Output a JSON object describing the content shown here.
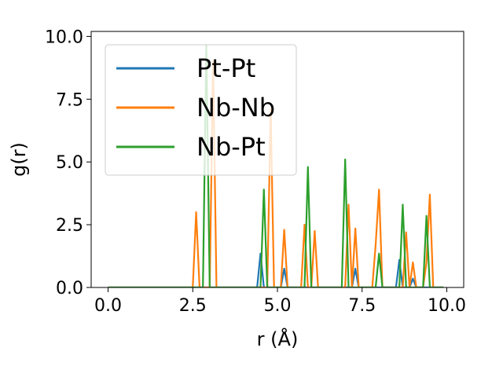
{
  "chart_data": {
    "type": "line",
    "title": "",
    "xlabel": "r (Å)",
    "ylabel": "g(r)",
    "xlim": [
      -0.5,
      10.5
    ],
    "ylim": [
      0.0,
      10.2
    ],
    "x_ticks": [
      "0.0",
      "2.5",
      "5.0",
      "7.5",
      "10.0"
    ],
    "y_ticks": [
      "0.0",
      "2.5",
      "5.0",
      "7.5",
      "10.0"
    ],
    "legend_position": "upper-left",
    "grid": false,
    "series": [
      {
        "name": "Pt-Pt",
        "color": "#1f77b4",
        "points": [
          [
            0.0,
            0.0
          ],
          [
            4.4,
            0.0
          ],
          [
            4.5,
            1.35
          ],
          [
            4.6,
            0.0
          ],
          [
            5.1,
            0.0
          ],
          [
            5.2,
            0.75
          ],
          [
            5.3,
            0.0
          ],
          [
            7.2,
            0.0
          ],
          [
            7.3,
            0.75
          ],
          [
            7.4,
            0.0
          ],
          [
            8.5,
            0.0
          ],
          [
            8.6,
            1.1
          ],
          [
            8.7,
            0.0
          ],
          [
            8.9,
            0.0
          ],
          [
            9.0,
            0.35
          ],
          [
            9.1,
            0.0
          ],
          [
            9.9,
            0.0
          ]
        ]
      },
      {
        "name": "Nb-Nb",
        "color": "#ff7f0e",
        "points": [
          [
            0.0,
            0.0
          ],
          [
            2.5,
            0.0
          ],
          [
            2.6,
            3.0
          ],
          [
            2.7,
            0.0
          ],
          [
            3.0,
            0.0
          ],
          [
            3.1,
            9.0
          ],
          [
            3.2,
            0.0
          ],
          [
            4.7,
            0.0
          ],
          [
            4.8,
            7.1
          ],
          [
            4.9,
            0.0
          ],
          [
            5.1,
            0.0
          ],
          [
            5.2,
            2.3
          ],
          [
            5.3,
            0.0
          ],
          [
            5.7,
            0.0
          ],
          [
            5.8,
            2.5
          ],
          [
            5.9,
            0.0
          ],
          [
            6.0,
            0.0
          ],
          [
            6.1,
            2.25
          ],
          [
            6.2,
            0.0
          ],
          [
            7.0,
            0.0
          ],
          [
            7.1,
            3.3
          ],
          [
            7.2,
            0.0
          ],
          [
            7.3,
            2.35
          ],
          [
            7.4,
            0.0
          ],
          [
            7.8,
            0.0
          ],
          [
            7.9,
            1.7
          ],
          [
            8.0,
            3.9
          ],
          [
            8.1,
            0.0
          ],
          [
            8.7,
            0.0
          ],
          [
            8.8,
            2.2
          ],
          [
            8.9,
            0.0
          ],
          [
            9.0,
            1.0
          ],
          [
            9.1,
            0.0
          ],
          [
            9.3,
            0.0
          ],
          [
            9.4,
            1.0
          ],
          [
            9.5,
            3.7
          ],
          [
            9.6,
            0.0
          ],
          [
            9.9,
            0.0
          ]
        ]
      },
      {
        "name": "Nb-Pt",
        "color": "#2ca02c",
        "points": [
          [
            0.0,
            0.0
          ],
          [
            2.8,
            0.0
          ],
          [
            2.9,
            9.65
          ],
          [
            3.0,
            0.0
          ],
          [
            4.5,
            0.0
          ],
          [
            4.6,
            3.9
          ],
          [
            4.7,
            0.0
          ],
          [
            5.8,
            0.0
          ],
          [
            5.9,
            4.8
          ],
          [
            6.0,
            0.0
          ],
          [
            6.9,
            0.0
          ],
          [
            7.0,
            5.1
          ],
          [
            7.1,
            0.0
          ],
          [
            7.9,
            0.0
          ],
          [
            8.0,
            1.35
          ],
          [
            8.1,
            0.0
          ],
          [
            8.6,
            0.0
          ],
          [
            8.7,
            3.3
          ],
          [
            8.8,
            0.0
          ],
          [
            9.3,
            0.0
          ],
          [
            9.4,
            2.85
          ],
          [
            9.5,
            0.0
          ],
          [
            9.9,
            0.0
          ]
        ]
      }
    ]
  }
}
